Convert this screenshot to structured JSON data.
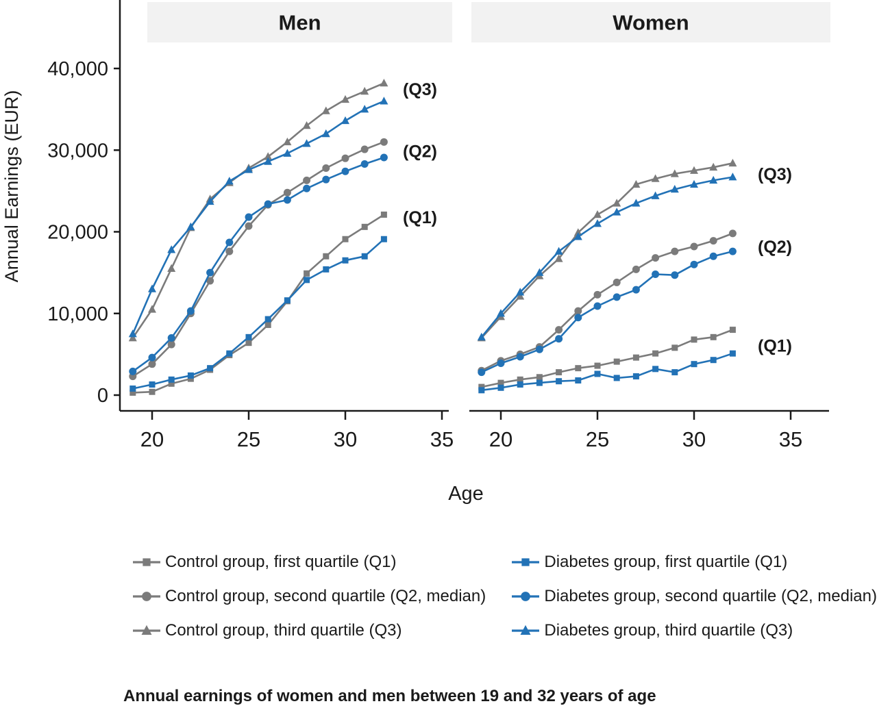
{
  "caption": "Annual earnings of women and men between 19 and 32 years of age",
  "colors": {
    "control": "#7b7b7b",
    "diabetes": "#2272b6",
    "header_bg": "#f2f2f2",
    "axis": "#1a1a1a"
  },
  "chart_data": [
    {
      "type": "line",
      "title": "Men",
      "xlabel": "Age",
      "ylabel": "Annual Earnings (EUR)",
      "xlim": [
        18.3,
        35.4
      ],
      "ylim": [
        0,
        40000
      ],
      "xticks": [
        20,
        25,
        30,
        35
      ],
      "yticks": [
        0,
        10000,
        20000,
        30000,
        40000
      ],
      "ytick_labels": [
        "0",
        "10,000",
        "20,000",
        "30,000",
        "40,000"
      ],
      "x": [
        19,
        20,
        21,
        22,
        23,
        24,
        25,
        26,
        27,
        28,
        29,
        30,
        31,
        32
      ],
      "series": [
        {
          "name": "Control group, first quartile (Q1)",
          "group": "control",
          "marker": "square",
          "values": [
            300,
            400,
            1400,
            2000,
            3100,
            4900,
            6400,
            8600,
            11500,
            14900,
            17000,
            19100,
            20600,
            22100
          ]
        },
        {
          "name": "Control group, second quartile (Q2, median)",
          "group": "control",
          "marker": "circle",
          "values": [
            2300,
            3800,
            6200,
            10000,
            14000,
            17600,
            20700,
            23300,
            24800,
            26300,
            27800,
            29000,
            30100,
            31000
          ]
        },
        {
          "name": "Control group, third quartile (Q3)",
          "group": "control",
          "marker": "triangle",
          "values": [
            7000,
            10500,
            15500,
            20500,
            24000,
            26000,
            27800,
            29200,
            31000,
            33000,
            34800,
            36200,
            37200,
            38200
          ]
        },
        {
          "name": "Diabetes group, first quartile (Q1)",
          "group": "diabetes",
          "marker": "square",
          "values": [
            800,
            1300,
            1900,
            2400,
            3300,
            5100,
            7100,
            9300,
            11600,
            14100,
            15400,
            16500,
            17000,
            19100
          ]
        },
        {
          "name": "Diabetes group, second quartile (Q2, median)",
          "group": "diabetes",
          "marker": "circle",
          "values": [
            2900,
            4600,
            7000,
            10300,
            15000,
            18700,
            21800,
            23400,
            23900,
            25300,
            26400,
            27400,
            28300,
            29100
          ]
        },
        {
          "name": "Diabetes group, third quartile (Q3)",
          "group": "diabetes",
          "marker": "triangle",
          "values": [
            7500,
            13000,
            17800,
            20600,
            23700,
            26200,
            27600,
            28600,
            29600,
            30800,
            32000,
            33600,
            35000,
            36000
          ]
        }
      ],
      "annotations": [
        {
          "label": "(Q3)",
          "value": 37500
        },
        {
          "label": "(Q2)",
          "value": 29900
        },
        {
          "label": "(Q1)",
          "value": 21800
        }
      ]
    },
    {
      "type": "line",
      "title": "Women",
      "xlabel": "Age",
      "ylabel": "Annual Earnings (EUR)",
      "xlim": [
        18.3,
        35.4
      ],
      "ylim": [
        0,
        40000
      ],
      "xticks": [
        20,
        25,
        30,
        35
      ],
      "yticks": [
        0,
        10000,
        20000,
        30000,
        40000
      ],
      "ytick_labels": [
        "0",
        "10,000",
        "20,000",
        "30,000",
        "40,000"
      ],
      "x": [
        19,
        20,
        21,
        22,
        23,
        24,
        25,
        26,
        27,
        28,
        29,
        30,
        31,
        32
      ],
      "series": [
        {
          "name": "Control group, first quartile (Q1)",
          "group": "control",
          "marker": "square",
          "values": [
            1000,
            1500,
            1900,
            2200,
            2800,
            3300,
            3600,
            4100,
            4600,
            5100,
            5800,
            6800,
            7100,
            8000
          ]
        },
        {
          "name": "Control group, second quartile (Q2, median)",
          "group": "control",
          "marker": "circle",
          "values": [
            3000,
            4200,
            5000,
            5900,
            8000,
            10300,
            12300,
            13800,
            15400,
            16800,
            17600,
            18200,
            18900,
            19800
          ]
        },
        {
          "name": "Control group, third quartile (Q3)",
          "group": "control",
          "marker": "triangle",
          "values": [
            7000,
            9600,
            12100,
            14600,
            16700,
            19900,
            22100,
            23500,
            25800,
            26500,
            27100,
            27500,
            27900,
            28400
          ]
        },
        {
          "name": "Diabetes group, first quartile (Q1)",
          "group": "diabetes",
          "marker": "square",
          "values": [
            600,
            900,
            1300,
            1500,
            1700,
            1800,
            2600,
            2100,
            2300,
            3200,
            2800,
            3800,
            4300,
            5100
          ]
        },
        {
          "name": "Diabetes group, second quartile (Q2, median)",
          "group": "diabetes",
          "marker": "circle",
          "values": [
            2800,
            3900,
            4700,
            5600,
            6900,
            9500,
            10900,
            12000,
            12900,
            14800,
            14700,
            16000,
            17000,
            17600
          ]
        },
        {
          "name": "Diabetes group, third quartile (Q3)",
          "group": "diabetes",
          "marker": "triangle",
          "values": [
            7100,
            10000,
            12600,
            15000,
            17600,
            19400,
            21000,
            22400,
            23500,
            24400,
            25200,
            25800,
            26300,
            26700
          ]
        }
      ],
      "annotations": [
        {
          "label": "(Q3)",
          "value": 27100
        },
        {
          "label": "(Q2)",
          "value": 18200
        },
        {
          "label": "(Q1)",
          "value": 6100
        }
      ]
    }
  ],
  "legend": {
    "columns": [
      {
        "group": "control",
        "items": [
          {
            "label": "Control group, first quartile (Q1)",
            "marker": "square"
          },
          {
            "label": "Control group, second quartile (Q2, median)",
            "marker": "circle"
          },
          {
            "label": "Control group, third quartile (Q3)",
            "marker": "triangle"
          }
        ]
      },
      {
        "group": "diabetes",
        "items": [
          {
            "label": "Diabetes group, first quartile (Q1)",
            "marker": "square"
          },
          {
            "label": "Diabetes group, second quartile (Q2, median)",
            "marker": "circle"
          },
          {
            "label": "Diabetes group, third quartile (Q3)",
            "marker": "triangle"
          }
        ]
      }
    ]
  }
}
